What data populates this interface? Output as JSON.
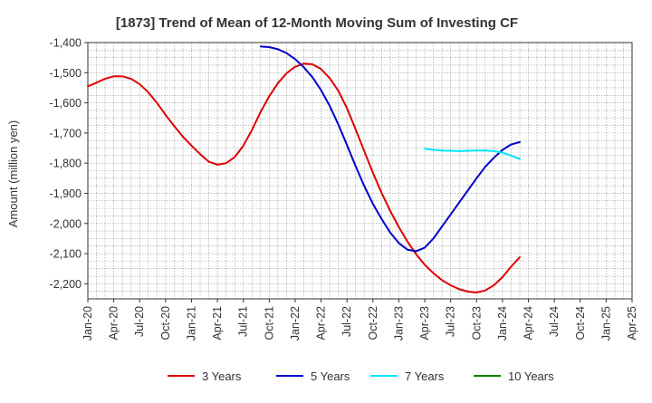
{
  "chart_data": {
    "type": "line",
    "title": "[1873]  Trend of Mean of 12-Month Moving Sum of Investing CF",
    "ylabel": "Amount (million yen)",
    "xlabel": "",
    "ylim": [
      -2250,
      -1400
    ],
    "y_ticks": [
      -1400,
      -1500,
      -1600,
      -1700,
      -1800,
      -1900,
      -2000,
      -2100,
      -2200
    ],
    "y_tick_labels": [
      "-1,400",
      "-1,500",
      "-1,600",
      "-1,700",
      "-1,800",
      "-1,900",
      "-2,000",
      "-2,100",
      "-2,200"
    ],
    "x_range": [
      "2020-01",
      "2025-04"
    ],
    "x_tick_labels": [
      "Jan-20",
      "Apr-20",
      "Jul-20",
      "Oct-20",
      "Jan-21",
      "Apr-21",
      "Jul-21",
      "Oct-21",
      "Jan-22",
      "Apr-22",
      "Jul-22",
      "Oct-22",
      "Jan-23",
      "Apr-23",
      "Jul-23",
      "Oct-23",
      "Jan-24",
      "Apr-24",
      "Jul-24",
      "Oct-24",
      "Jan-25",
      "Apr-25"
    ],
    "grid": true,
    "legend_position": "bottom",
    "series": [
      {
        "name": "3 Years",
        "color": "#e00000",
        "points": [
          [
            "2020-01",
            -1545
          ],
          [
            "2020-02",
            -1533
          ],
          [
            "2020-03",
            -1520
          ],
          [
            "2020-04",
            -1512
          ],
          [
            "2020-05",
            -1512
          ],
          [
            "2020-06",
            -1520
          ],
          [
            "2020-07",
            -1538
          ],
          [
            "2020-08",
            -1565
          ],
          [
            "2020-09",
            -1600
          ],
          [
            "2020-10",
            -1640
          ],
          [
            "2020-11",
            -1677
          ],
          [
            "2020-12",
            -1712
          ],
          [
            "2021-01",
            -1742
          ],
          [
            "2021-02",
            -1770
          ],
          [
            "2021-03",
            -1795
          ],
          [
            "2021-04",
            -1805
          ],
          [
            "2021-05",
            -1800
          ],
          [
            "2021-06",
            -1780
          ],
          [
            "2021-07",
            -1742
          ],
          [
            "2021-08",
            -1690
          ],
          [
            "2021-09",
            -1630
          ],
          [
            "2021-10",
            -1578
          ],
          [
            "2021-11",
            -1535
          ],
          [
            "2021-12",
            -1502
          ],
          [
            "2022-01",
            -1480
          ],
          [
            "2022-02",
            -1470
          ],
          [
            "2022-03",
            -1472
          ],
          [
            "2022-04",
            -1488
          ],
          [
            "2022-05",
            -1518
          ],
          [
            "2022-06",
            -1560
          ],
          [
            "2022-07",
            -1618
          ],
          [
            "2022-08",
            -1688
          ],
          [
            "2022-09",
            -1760
          ],
          [
            "2022-10",
            -1832
          ],
          [
            "2022-11",
            -1898
          ],
          [
            "2022-12",
            -1958
          ],
          [
            "2023-01",
            -2012
          ],
          [
            "2023-02",
            -2060
          ],
          [
            "2023-03",
            -2102
          ],
          [
            "2023-04",
            -2137
          ],
          [
            "2023-05",
            -2165
          ],
          [
            "2023-06",
            -2188
          ],
          [
            "2023-07",
            -2205
          ],
          [
            "2023-08",
            -2218
          ],
          [
            "2023-09",
            -2226
          ],
          [
            "2023-10",
            -2229
          ],
          [
            "2023-11",
            -2222
          ],
          [
            "2023-12",
            -2205
          ],
          [
            "2024-01",
            -2178
          ],
          [
            "2024-02",
            -2143
          ],
          [
            "2024-03",
            -2112
          ]
        ]
      },
      {
        "name": "5 Years",
        "color": "#0000cc",
        "points": [
          [
            "2021-09",
            -1413
          ],
          [
            "2021-10",
            -1415
          ],
          [
            "2021-11",
            -1422
          ],
          [
            "2021-12",
            -1435
          ],
          [
            "2022-01",
            -1455
          ],
          [
            "2022-02",
            -1482
          ],
          [
            "2022-03",
            -1515
          ],
          [
            "2022-04",
            -1558
          ],
          [
            "2022-05",
            -1610
          ],
          [
            "2022-06",
            -1672
          ],
          [
            "2022-07",
            -1740
          ],
          [
            "2022-08",
            -1810
          ],
          [
            "2022-09",
            -1876
          ],
          [
            "2022-10",
            -1935
          ],
          [
            "2022-11",
            -1985
          ],
          [
            "2022-12",
            -2030
          ],
          [
            "2023-01",
            -2065
          ],
          [
            "2023-02",
            -2087
          ],
          [
            "2023-03",
            -2092
          ],
          [
            "2023-04",
            -2080
          ],
          [
            "2023-05",
            -2050
          ],
          [
            "2023-06",
            -2010
          ],
          [
            "2023-07",
            -1970
          ],
          [
            "2023-08",
            -1930
          ],
          [
            "2023-09",
            -1890
          ],
          [
            "2023-10",
            -1850
          ],
          [
            "2023-11",
            -1812
          ],
          [
            "2023-12",
            -1782
          ],
          [
            "2024-01",
            -1756
          ],
          [
            "2024-02",
            -1738
          ],
          [
            "2024-03",
            -1730
          ]
        ]
      },
      {
        "name": "7 Years",
        "color": "#00e5ff",
        "points": [
          [
            "2023-04",
            -1752
          ],
          [
            "2023-05",
            -1756
          ],
          [
            "2023-06",
            -1758
          ],
          [
            "2023-07",
            -1759
          ],
          [
            "2023-08",
            -1760
          ],
          [
            "2023-09",
            -1759
          ],
          [
            "2023-10",
            -1758
          ],
          [
            "2023-11",
            -1758
          ],
          [
            "2023-12",
            -1760
          ],
          [
            "2024-01",
            -1765
          ],
          [
            "2024-02",
            -1775
          ],
          [
            "2024-03",
            -1786
          ]
        ]
      },
      {
        "name": "10 Years",
        "color": "#008000",
        "points": []
      }
    ]
  }
}
